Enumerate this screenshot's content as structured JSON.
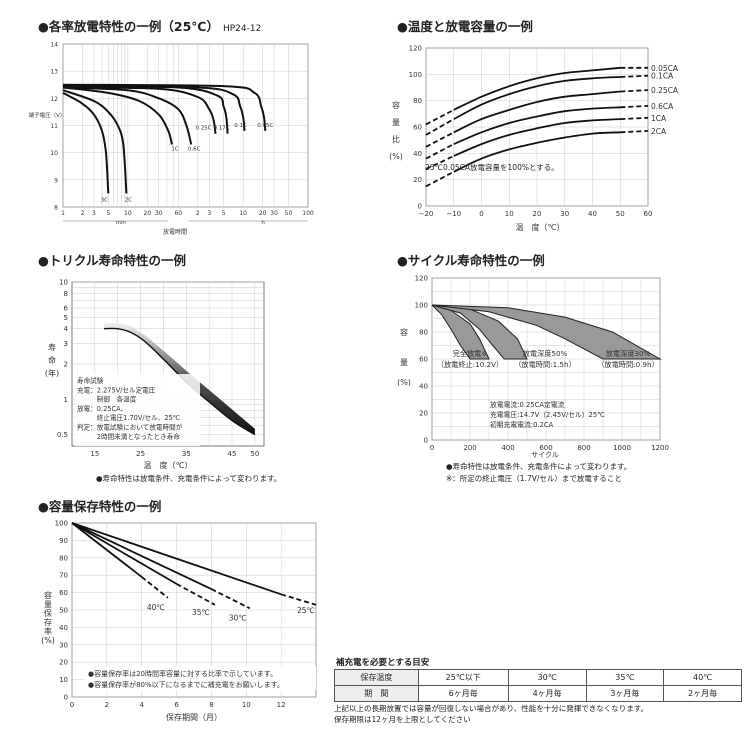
{
  "panels": {
    "discharge": {
      "title": "●各率放電特性の一例（25℃）",
      "model": "HP24-12",
      "ylabel": "端子電圧（V）",
      "xlabel": "放電時間",
      "x_unit_min": "min",
      "x_unit_h": "h"
    },
    "temperature": {
      "title": "●温度と放電容量の一例",
      "ylabel_chars": [
        "容",
        "量",
        "比",
        "(%)"
      ],
      "xlabel": "温　度（℃）",
      "note": "25℃0.05CA放電容量を100%とする。"
    },
    "trickle": {
      "title": "●トリクル寿命特性の一例",
      "ylabel_chars": [
        "寿",
        "命",
        "(年)"
      ],
      "xlabel": "温　度（℃）",
      "legend_lines": [
        "寿命試験",
        "充電：2.275V/セル定電圧",
        "　　　制御　各温度",
        "放電：0.25CA、",
        "　　　終止電圧1.70V/セル、25℃",
        "判定：放電試験において放電時間が",
        "　　　2時間未満となったとき寿命"
      ],
      "note": "●寿命特性は放電条件、充電条件によって変わります。"
    },
    "cycle": {
      "title": "●サイクル寿命特性の一例",
      "ylabel_chars": [
        "容",
        "量",
        "(%)"
      ],
      "xlabel": "サイクル",
      "band_labels": [
        [
          "完全放電※",
          "（放電終止:10.2V）"
        ],
        [
          "放電深度50%",
          "（放電時間:1.5h）"
        ],
        [
          "放電深度30%",
          "（放電時間:0.9h）"
        ]
      ],
      "conditions": [
        "放電電流:0.25CA定電流",
        "充電電圧:14.7V（2.45V/セル）25℃",
        "初期充電電流:0.2CA"
      ],
      "notes": [
        "●寿命特性は放電条件、充電条件によって変わります。",
        "※：所定の終止電圧（1.7V/セル）まで放電すること"
      ]
    },
    "retention": {
      "title": "●容量保存特性の一例",
      "ylabel_chars": [
        "容",
        "量",
        "保",
        "存",
        "率",
        "(%)"
      ],
      "xlabel": "保存期間（月）",
      "notes": [
        "●容量保存率は20時間率容量に対する比率で示しています。",
        "●容量保存率が80%以下になるまでに補充電をお願いします。"
      ]
    }
  },
  "recharge_guide": {
    "title": "補充電を必要とする目安",
    "rows": [
      [
        "保存温度",
        "25℃以下",
        "30℃",
        "35℃",
        "40℃"
      ],
      [
        "期　間",
        "6ヶ月毎",
        "4ヶ月毎",
        "3ヶ月毎",
        "2ヶ月毎"
      ]
    ]
  },
  "footer": [
    "上記以上の長期放置では容量が回復しない場合があり、性能を十分に発揮できなくなります。",
    "保存期限は12ヶ月を上限としてください"
  ],
  "chart_data": [
    {
      "id": "discharge",
      "type": "line",
      "title": "各率放電特性の一例（25℃）",
      "xlabel": "放電時間",
      "ylabel": "端子電圧（V）",
      "x_scale": "log",
      "x_ticks_min": [
        "1",
        "2",
        "3",
        "5",
        "10",
        "20",
        "30",
        "60"
      ],
      "x_ticks_h": [
        "2",
        "3",
        "5",
        "10",
        "20",
        "30",
        "50",
        "100"
      ],
      "y_ticks": [
        "8",
        "9",
        "10",
        "11",
        "12",
        "13",
        "14"
      ],
      "ylim": [
        8,
        14
      ],
      "series": [
        {
          "name": "3C",
          "t_min": [
            1,
            2,
            3,
            4,
            4.6,
            5
          ],
          "v": [
            12.2,
            11.8,
            11.4,
            10.8,
            10.0,
            8.5
          ]
        },
        {
          "name": "2C",
          "t_min": [
            1,
            3,
            5,
            7,
            8.5,
            9.5
          ],
          "v": [
            12.3,
            11.9,
            11.5,
            11.0,
            10.3,
            8.5
          ]
        },
        {
          "name": "1C",
          "t_min": [
            1,
            5,
            15,
            30,
            42,
            48
          ],
          "v": [
            12.4,
            12.2,
            11.9,
            11.4,
            10.8,
            10.3
          ]
        },
        {
          "name": "0.6C",
          "t_min": [
            1,
            10,
            30,
            60,
            80,
            95
          ],
          "v": [
            12.4,
            12.3,
            12.0,
            11.6,
            11.0,
            10.3
          ]
        },
        {
          "name": "0.25C",
          "t_min": [
            1,
            30,
            120,
            180,
            210,
            225
          ],
          "v": [
            12.4,
            12.35,
            12.05,
            11.6,
            11.2,
            10.7
          ]
        },
        {
          "name": "0.17C",
          "t_min": [
            1,
            60,
            240,
            300,
            330,
            345
          ],
          "v": [
            12.45,
            12.4,
            12.1,
            11.7,
            11.3,
            10.7
          ]
        },
        {
          "name": "0.1C",
          "t_min": [
            1,
            120,
            420,
            540,
            600,
            630
          ],
          "v": [
            12.45,
            12.4,
            12.15,
            11.7,
            11.3,
            10.8
          ]
        },
        {
          "name": "0.05C",
          "t_min": [
            1,
            300,
            900,
            1140,
            1260,
            1320
          ],
          "v": [
            12.5,
            12.45,
            12.2,
            11.7,
            11.3,
            10.8
          ]
        }
      ]
    },
    {
      "id": "temperature",
      "type": "line",
      "title": "温度と放電容量の一例",
      "xlabel": "温　度（℃）",
      "ylabel": "容量比（%）",
      "x_ticks": [
        "−20",
        "−10",
        "0",
        "10",
        "20",
        "30",
        "40",
        "50",
        "60"
      ],
      "y_ticks": [
        "0",
        "20",
        "40",
        "60",
        "80",
        "100",
        "120"
      ],
      "xlim": [
        -20,
        60
      ],
      "ylim": [
        0,
        120
      ],
      "series": [
        {
          "name": "0.05CA",
          "x": [
            -20,
            -10,
            0,
            10,
            20,
            30,
            40,
            50,
            60
          ],
          "y": [
            62,
            73,
            83,
            91,
            97,
            101,
            103,
            105,
            105
          ]
        },
        {
          "name": "0.1CA",
          "x": [
            -20,
            -10,
            0,
            10,
            20,
            30,
            40,
            50,
            60
          ],
          "y": [
            54,
            66,
            77,
            85,
            91,
            95,
            97,
            98,
            99
          ]
        },
        {
          "name": "0.25CA",
          "x": [
            -20,
            -10,
            0,
            10,
            20,
            30,
            40,
            50,
            60
          ],
          "y": [
            45,
            56,
            66,
            73,
            79,
            83,
            85,
            87,
            88
          ]
        },
        {
          "name": "0.6CA",
          "x": [
            -20,
            -10,
            0,
            10,
            20,
            30,
            40,
            50,
            60
          ],
          "y": [
            36,
            47,
            56,
            63,
            68,
            72,
            74,
            75,
            76
          ]
        },
        {
          "name": "1CA",
          "x": [
            -20,
            -10,
            0,
            10,
            20,
            30,
            40,
            50,
            60
          ],
          "y": [
            28,
            38,
            47,
            54,
            59,
            63,
            65,
            66,
            67
          ]
        },
        {
          "name": "2CA",
          "x": [
            -20,
            -10,
            0,
            10,
            20,
            30,
            40,
            50,
            60
          ],
          "y": [
            15,
            26,
            36,
            43,
            48,
            52,
            55,
            56,
            57
          ]
        }
      ]
    },
    {
      "id": "trickle",
      "type": "area",
      "title": "トリクル寿命特性の一例",
      "xlabel": "温　度（℃）",
      "ylabel": "寿命（年）",
      "y_scale": "log",
      "x_ticks": [
        "15",
        "25",
        "35",
        "45",
        "50"
      ],
      "y_ticks": [
        "0.5",
        "1",
        "2",
        "3",
        "4",
        "5",
        "6",
        "8",
        "10"
      ],
      "xlim": [
        10,
        52
      ],
      "ylim": [
        0.4,
        10
      ],
      "series": [
        {
          "name": "upper",
          "x": [
            17,
            20,
            23,
            26,
            30,
            35,
            40,
            45,
            50
          ],
          "y": [
            4.5,
            4.5,
            4.2,
            3.5,
            2.6,
            1.75,
            1.2,
            0.82,
            0.56
          ]
        },
        {
          "name": "lower",
          "x": [
            17,
            20,
            23,
            26,
            30,
            35,
            40,
            45,
            50
          ],
          "y": [
            4.0,
            4.0,
            3.7,
            3.1,
            2.2,
            1.4,
            0.95,
            0.66,
            0.5
          ]
        }
      ]
    },
    {
      "id": "cycle",
      "type": "area",
      "title": "サイクル寿命特性の一例",
      "xlabel": "サイクル",
      "ylabel": "容量（%）",
      "x_ticks": [
        "0",
        "200",
        "400",
        "600",
        "800",
        "1000",
        "1200"
      ],
      "y_ticks": [
        "0",
        "20",
        "40",
        "60",
        "80",
        "100",
        "120"
      ],
      "xlim": [
        0,
        1200
      ],
      "ylim": [
        0,
        120
      ],
      "series": [
        {
          "name": "完全放電 upper",
          "x": [
            0,
            100,
            200,
            250,
            300
          ],
          "y": [
            100,
            96,
            86,
            75,
            60
          ]
        },
        {
          "name": "完全放電 lower",
          "x": [
            0,
            50,
            100,
            150,
            200
          ],
          "y": [
            100,
            93,
            82,
            70,
            60
          ]
        },
        {
          "name": "放電深度50% upper",
          "x": [
            0,
            200,
            350,
            450,
            500
          ],
          "y": [
            100,
            97,
            88,
            75,
            60
          ]
        },
        {
          "name": "放電深度50% lower",
          "x": [
            0,
            150,
            250,
            320,
            380
          ],
          "y": [
            100,
            94,
            82,
            70,
            60
          ]
        },
        {
          "name": "放電深度30% upper",
          "x": [
            0,
            400,
            700,
            950,
            1200
          ],
          "y": [
            100,
            98,
            91,
            80,
            60
          ]
        },
        {
          "name": "放電深度30% lower",
          "x": [
            0,
            300,
            550,
            700,
            900
          ],
          "y": [
            100,
            95,
            85,
            75,
            60
          ]
        }
      ]
    },
    {
      "id": "retention",
      "type": "line",
      "title": "容量保存特性の一例",
      "xlabel": "保存期間（月）",
      "ylabel": "容量保存率（%）",
      "x_ticks": [
        "0",
        "2",
        "4",
        "6",
        "8",
        "10",
        "12"
      ],
      "y_ticks": [
        "0",
        "10",
        "20",
        "30",
        "40",
        "50",
        "60",
        "70",
        "80",
        "90",
        "100"
      ],
      "xlim": [
        0,
        14
      ],
      "ylim": [
        0,
        100
      ],
      "series": [
        {
          "name": "25℃",
          "x": [
            0,
            12,
            14
          ],
          "y": [
            100,
            59,
            53
          ]
        },
        {
          "name": "30℃",
          "x": [
            0,
            8,
            10.2
          ],
          "y": [
            100,
            62,
            51
          ]
        },
        {
          "name": "35℃",
          "x": [
            0,
            6,
            8.2
          ],
          "y": [
            100,
            65,
            53
          ]
        },
        {
          "name": "40℃",
          "x": [
            0,
            4,
            5.5
          ],
          "y": [
            100,
            69,
            57
          ]
        }
      ]
    }
  ]
}
